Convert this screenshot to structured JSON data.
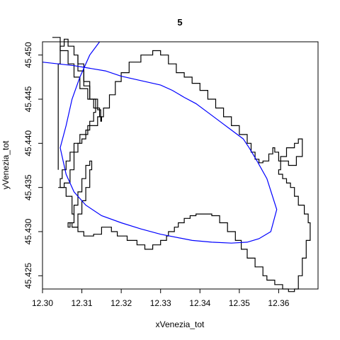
{
  "chart_data": {
    "type": "line",
    "title": "5",
    "xlabel": "xVenezia_tot",
    "ylabel": "yVenezia_tot",
    "xlim": [
      12.3,
      12.37
    ],
    "ylim": [
      45.4235,
      45.4515
    ],
    "x_ticks": [
      12.3,
      12.31,
      12.32,
      12.33,
      12.34,
      12.35,
      12.36
    ],
    "x_tick_labels": [
      "12.30",
      "12.31",
      "12.32",
      "12.33",
      "12.34",
      "12.35",
      "12.36"
    ],
    "y_ticks": [
      45.425,
      45.43,
      45.435,
      45.44,
      45.445,
      45.45
    ],
    "y_tick_labels": [
      "45.425",
      "45.430",
      "45.435",
      "45.440",
      "45.445",
      "45.450"
    ],
    "grid": false,
    "legend": "none",
    "colors": {
      "outline": "#000000",
      "route": "#0000ff"
    },
    "series": [
      {
        "style": "step",
        "color": "#000000",
        "x": [
          12.3025,
          12.3045,
          12.3065,
          12.308,
          12.3095,
          12.3115,
          12.313,
          12.3145,
          12.315,
          12.3148,
          12.314,
          12.312,
          12.3105,
          12.309
        ],
        "y": [
          45.452,
          45.4505,
          45.449,
          45.4475,
          45.4462,
          45.445,
          45.444,
          45.443,
          45.4425,
          45.4438,
          45.445,
          45.4465,
          45.4482,
          45.45
        ]
      },
      {
        "style": "step",
        "color": "#000000",
        "x": [
          12.304,
          12.3055,
          12.307,
          12.308,
          12.309,
          12.31,
          12.311,
          12.312,
          12.313,
          12.3135,
          12.312,
          12.3105,
          12.309,
          12.308,
          12.3065,
          12.3055,
          12.3045,
          12.304
        ],
        "y": [
          45.435,
          45.4355,
          45.437,
          45.439,
          45.44,
          45.4405,
          45.4415,
          45.4425,
          45.4435,
          45.445,
          45.447,
          45.449,
          45.45,
          45.451,
          45.4518,
          45.451,
          45.449,
          45.437
        ]
      },
      {
        "style": "step",
        "color": "#000000",
        "x": [
          12.3045,
          12.306,
          12.3075,
          12.308,
          12.307,
          12.3065,
          12.3075,
          12.309,
          12.3105,
          12.3115,
          12.313,
          12.315,
          12.3175,
          12.319,
          12.3215,
          12.324,
          12.326,
          12.328,
          12.33,
          12.3315,
          12.332,
          12.3335,
          12.3345,
          12.336,
          12.3375,
          12.339,
          12.341,
          12.343,
          12.345,
          12.347,
          12.349,
          12.3505,
          12.352,
          12.354,
          12.356,
          12.357,
          12.359,
          12.361,
          12.3625,
          12.364,
          12.365,
          12.366,
          12.367,
          12.368,
          12.368,
          12.3675,
          12.3665,
          12.365,
          12.364,
          12.363,
          12.362,
          12.361,
          12.36,
          12.3605,
          12.362,
          12.364,
          12.365,
          12.366,
          12.366,
          12.3645,
          12.3625,
          12.36,
          12.359,
          12.3585,
          12.3575,
          12.356,
          12.355,
          12.354,
          12.353,
          12.352,
          12.35,
          12.348,
          12.346,
          12.344,
          12.342,
          12.34,
          12.338,
          12.336,
          12.334,
          12.332,
          12.33,
          12.328,
          12.325,
          12.322,
          12.32,
          12.3185,
          12.317,
          12.3155,
          12.314,
          12.3115,
          12.3095,
          12.308,
          12.307,
          12.306,
          12.305,
          12.3045
        ],
        "y": [
          45.435,
          45.434,
          45.432,
          45.431,
          45.4305,
          45.431,
          45.4305,
          45.43,
          45.4295,
          45.4295,
          45.4297,
          45.4305,
          45.43,
          45.4295,
          45.429,
          45.4285,
          45.428,
          45.4285,
          45.429,
          45.4295,
          45.43,
          45.4305,
          45.431,
          45.4315,
          45.4318,
          45.432,
          45.432,
          45.4318,
          45.431,
          45.43,
          45.429,
          45.428,
          45.427,
          45.426,
          45.425,
          45.4245,
          45.424,
          45.4235,
          45.4232,
          45.4235,
          45.425,
          45.427,
          45.429,
          45.43,
          45.431,
          45.432,
          45.433,
          45.434,
          45.435,
          45.4355,
          45.436,
          45.4365,
          45.437,
          45.4385,
          45.4395,
          45.44,
          45.4405,
          45.44,
          45.4385,
          45.4375,
          45.438,
          45.439,
          45.4395,
          45.4388,
          45.438,
          45.4378,
          45.4382,
          45.439,
          45.44,
          45.441,
          45.442,
          45.443,
          45.444,
          45.445,
          45.446,
          45.4468,
          45.4475,
          45.448,
          45.449,
          45.45,
          45.4505,
          45.45,
          45.4492,
          45.448,
          45.447,
          45.4455,
          45.444,
          45.443,
          45.442,
          45.441,
          45.44,
          45.439,
          45.438,
          45.437,
          45.436,
          45.435
        ]
      },
      {
        "style": "step",
        "color": "#000000",
        "x": [
          12.3075,
          12.309,
          12.31,
          12.311,
          12.312,
          12.3125,
          12.312,
          12.311,
          12.31,
          12.309,
          12.308
        ],
        "y": [
          45.4305,
          45.432,
          45.4335,
          45.435,
          45.437,
          45.438,
          45.4375,
          45.436,
          45.4345,
          45.433,
          45.4318
        ]
      },
      {
        "style": "line",
        "color": "#0000ff",
        "x": [
          12.3,
          12.304,
          12.308,
          12.312,
          12.316,
          12.32,
          12.326,
          12.33,
          12.333,
          12.336,
          12.339,
          12.342,
          12.345,
          12.348,
          12.351,
          12.3525,
          12.3545,
          12.357,
          12.3595,
          12.358,
          12.355,
          12.352,
          12.348,
          12.343,
          12.338,
          12.33,
          12.325,
          12.32,
          12.315,
          12.311,
          12.308,
          12.306,
          12.3045,
          12.306,
          12.3075,
          12.3095,
          12.312,
          12.3145
        ],
        "y": [
          45.4492,
          45.449,
          45.4488,
          45.4485,
          45.4482,
          45.4476,
          45.447,
          45.4466,
          45.446,
          45.4452,
          45.4445,
          45.4435,
          45.4425,
          45.4415,
          45.4405,
          45.4395,
          45.438,
          45.436,
          45.4325,
          45.43,
          45.4292,
          45.4288,
          45.4287,
          45.4288,
          45.429,
          45.4297,
          45.4303,
          45.431,
          45.4318,
          45.433,
          45.4345,
          45.4365,
          45.4395,
          45.442,
          45.445,
          45.4475,
          45.45,
          45.4515
        ]
      }
    ]
  }
}
